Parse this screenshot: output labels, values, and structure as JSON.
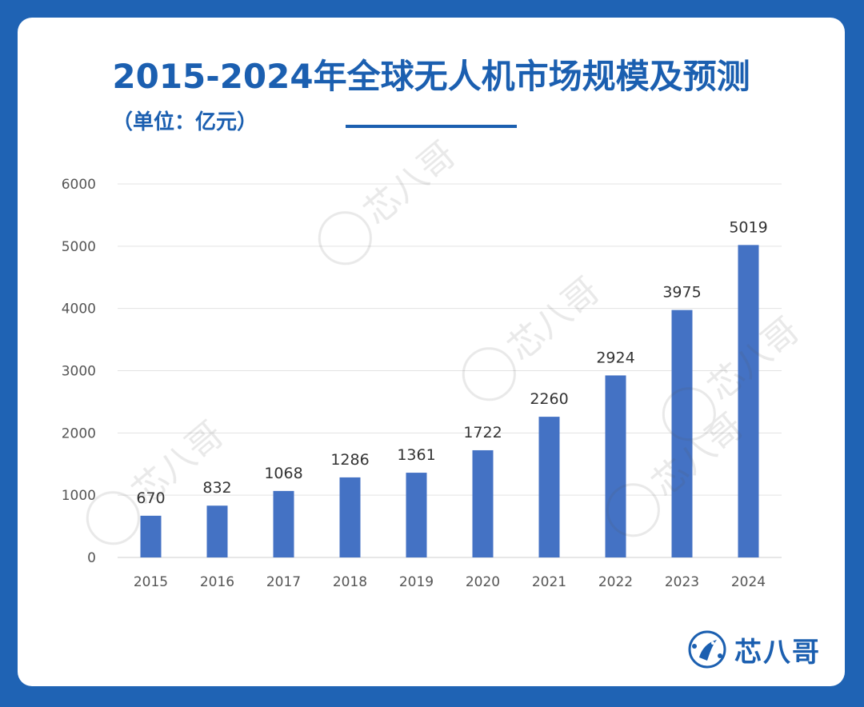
{
  "chart_data": {
    "type": "bar",
    "title": "2015-2024年全球无人机市场规模及预测",
    "unit_label": "（单位：亿元）",
    "categories": [
      "2015",
      "2016",
      "2017",
      "2018",
      "2019",
      "2020",
      "2021",
      "2022",
      "2023",
      "2024"
    ],
    "values": [
      670,
      832,
      1068,
      1286,
      1361,
      1722,
      2260,
      2924,
      3975,
      5019
    ],
    "ylim": [
      0,
      6000
    ],
    "yticks": [
      0,
      1000,
      2000,
      3000,
      4000,
      5000,
      6000
    ],
    "grid": true,
    "bar_color": "#4472c4",
    "xlabel": "",
    "ylabel": ""
  },
  "watermark": {
    "text": "芯八哥"
  },
  "brand": {
    "name": "芯八哥",
    "color": "#1b5fb0"
  }
}
